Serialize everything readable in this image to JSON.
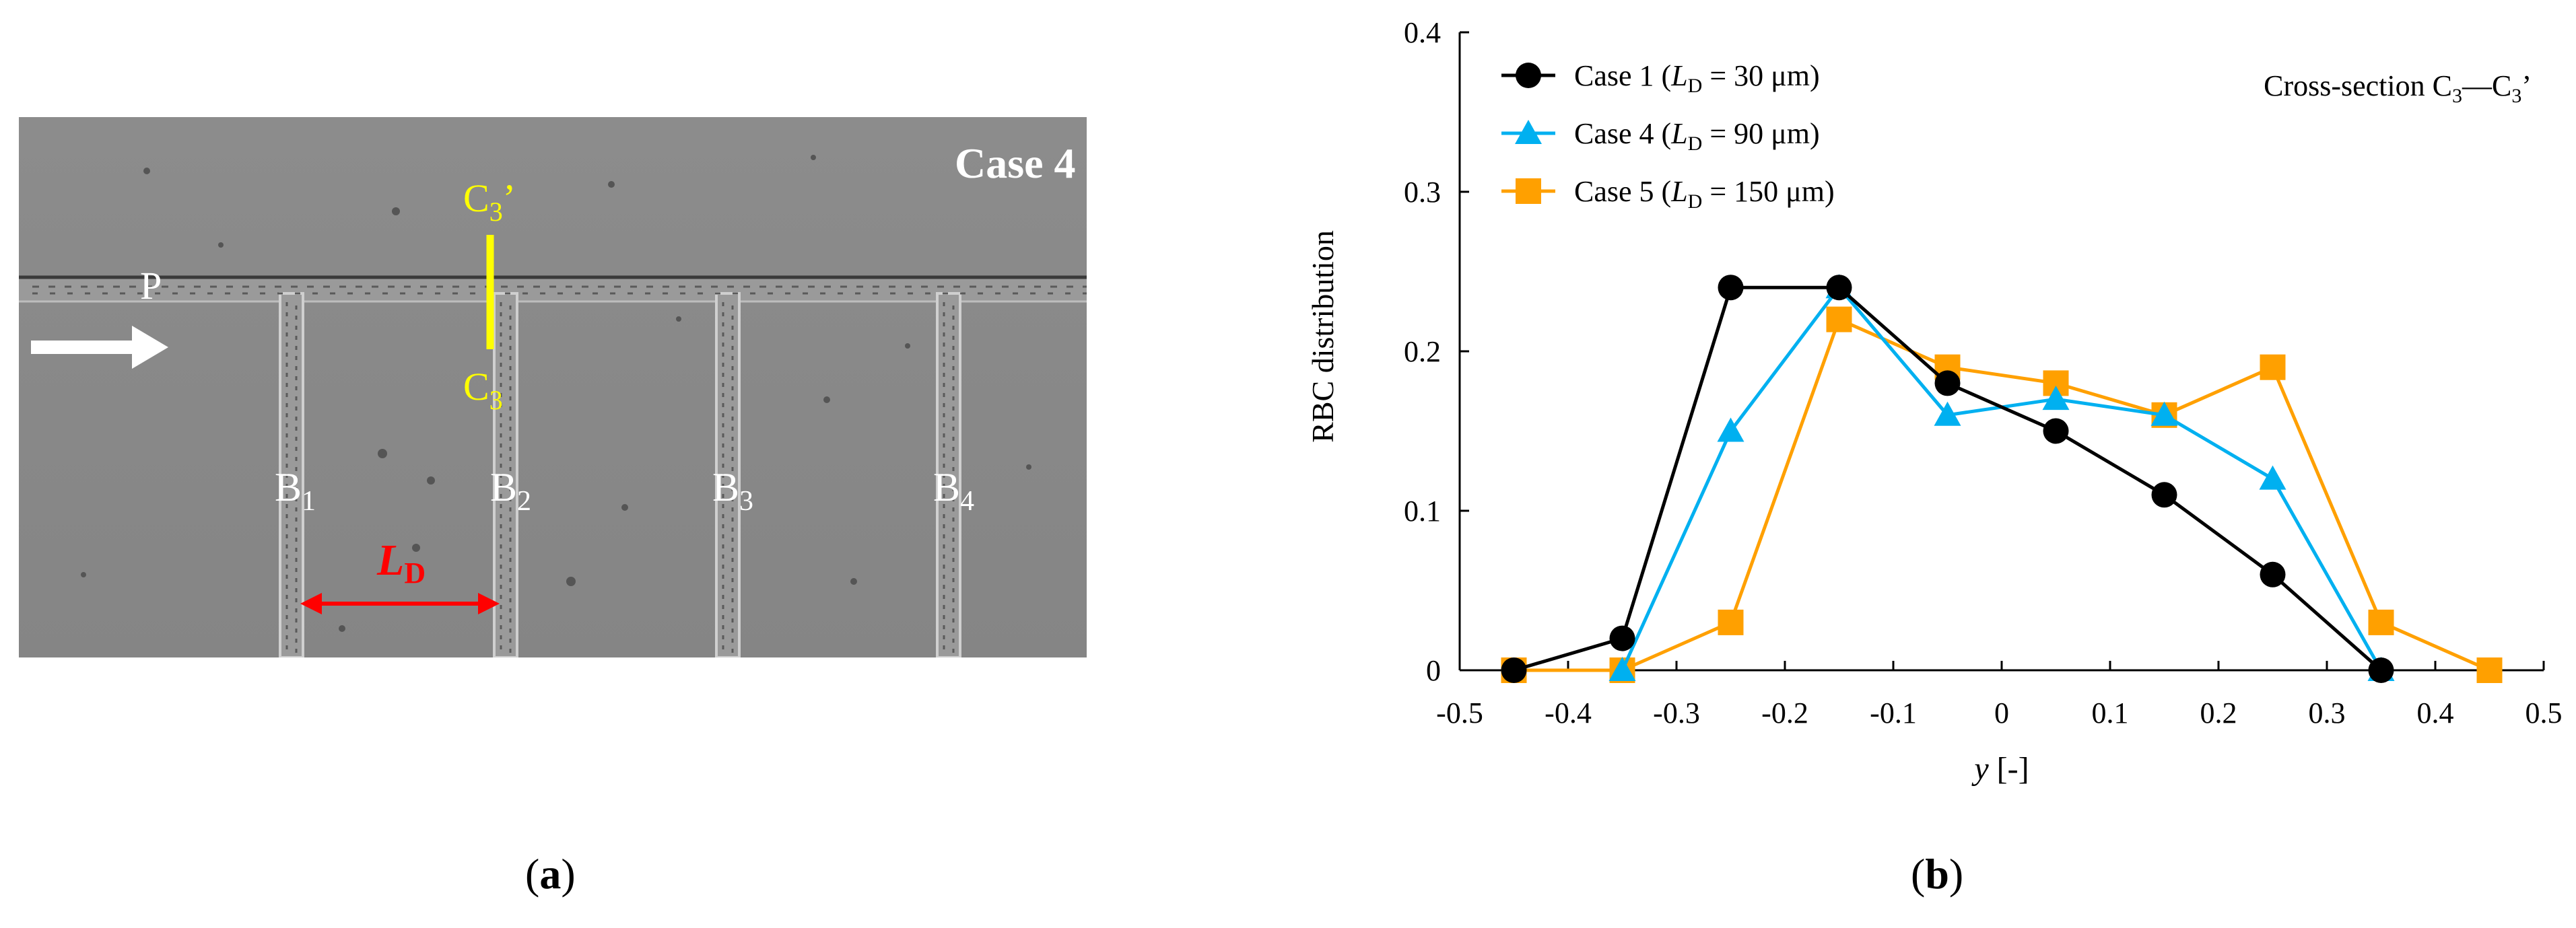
{
  "panel_a": {
    "case_label": "Case 4",
    "p_label": "P",
    "c3_prime_label": "C3’",
    "c3_label": "C3",
    "branch_labels": [
      "B1",
      "B2",
      "B3",
      "B4"
    ],
    "ld_label": "LD",
    "caption": "(a)",
    "colors": {
      "background": "#8a8a8a",
      "marker": "#ffff00",
      "arrow_ld": "#ff0000",
      "flow_arrow": "#ffffff"
    }
  },
  "chart_data": {
    "type": "line",
    "title": "",
    "annotation": "Cross-section C3—C3’",
    "xlabel": "y [-]",
    "ylabel": "RBC distribution",
    "xlim": [
      -0.5,
      0.5
    ],
    "ylim": [
      0,
      0.4
    ],
    "x_ticks": [
      -0.5,
      -0.4,
      -0.3,
      -0.2,
      -0.1,
      0,
      0.1,
      0.2,
      0.3,
      0.4,
      0.5
    ],
    "y_ticks": [
      0,
      0.1,
      0.2,
      0.3,
      0.4
    ],
    "x_tick_labels": [
      "-0.5",
      "-0.4",
      "-0.3",
      "-0.2",
      "-0.1",
      "0",
      "0.1",
      "0.2",
      "0.3",
      "0.4",
      "0.5"
    ],
    "y_tick_labels": [
      "0",
      "0.1",
      "0.2",
      "0.3",
      "0.4"
    ],
    "grid": false,
    "legend_position": "top-left",
    "series": [
      {
        "name": "Case 1 (LD = 30 μm)",
        "color": "#000000",
        "marker": "circle",
        "x": [
          -0.45,
          -0.35,
          -0.25,
          -0.15,
          -0.05,
          0.05,
          0.15,
          0.25,
          0.35
        ],
        "values": [
          0,
          0.02,
          0.24,
          0.24,
          0.18,
          0.15,
          0.11,
          0.06,
          0
        ]
      },
      {
        "name": "Case 4 (LD = 90 μm)",
        "color": "#00b0f0",
        "marker": "triangle",
        "x": [
          -0.35,
          -0.25,
          -0.15,
          -0.05,
          0.05,
          0.15,
          0.25,
          0.35
        ],
        "values": [
          0,
          0.15,
          0.24,
          0.16,
          0.17,
          0.16,
          0.12,
          0
        ]
      },
      {
        "name": "Case 5 (LD = 150 μm)",
        "color": "#ffa000",
        "marker": "square",
        "x": [
          -0.45,
          -0.35,
          -0.25,
          -0.15,
          -0.05,
          0.05,
          0.15,
          0.25,
          0.35,
          0.45
        ],
        "values": [
          0,
          0,
          0.03,
          0.22,
          0.19,
          0.18,
          0.16,
          0.19,
          0.03,
          0
        ]
      }
    ],
    "legend_labels": [
      {
        "prefix": "Case 1 (",
        "sym": "L",
        "sub": "D",
        "suffix": " = 30 μm)"
      },
      {
        "prefix": "Case 4 (",
        "sym": "L",
        "sub": "D",
        "suffix": " = 90 μm)"
      },
      {
        "prefix": "Case 5 (",
        "sym": "L",
        "sub": "D",
        "suffix": " = 150 μm)"
      }
    ],
    "caption": "(b)"
  }
}
